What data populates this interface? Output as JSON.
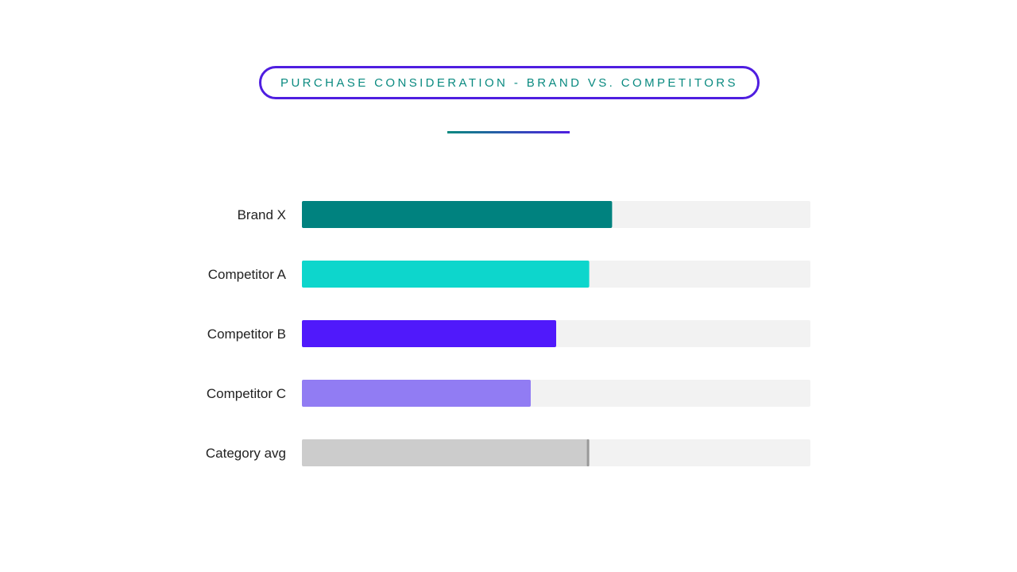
{
  "chart_data": {
    "type": "bar",
    "orientation": "horizontal",
    "title": "PURCHASE CONSIDERATION - BRAND VS. COMPETITORS",
    "categories": [
      "Brand X",
      "Competitor A",
      "Competitor B",
      "Competitor C",
      "Category avg"
    ],
    "values": [
      61,
      56.5,
      50,
      45,
      56.5
    ],
    "xlim": [
      0,
      100
    ],
    "colors": [
      "#00827f",
      "#0dd6cc",
      "#5019fb",
      "#917cf3",
      "#cccccc"
    ],
    "track_color": "#f2f2f2",
    "average_marker_color": "#999999",
    "grid": false,
    "legend": "none"
  },
  "colors": {
    "title_text": "#0a8a80",
    "title_border": "#4f1ee0",
    "divider_start": "#0a8a80",
    "divider_end": "#4f1ee0"
  }
}
